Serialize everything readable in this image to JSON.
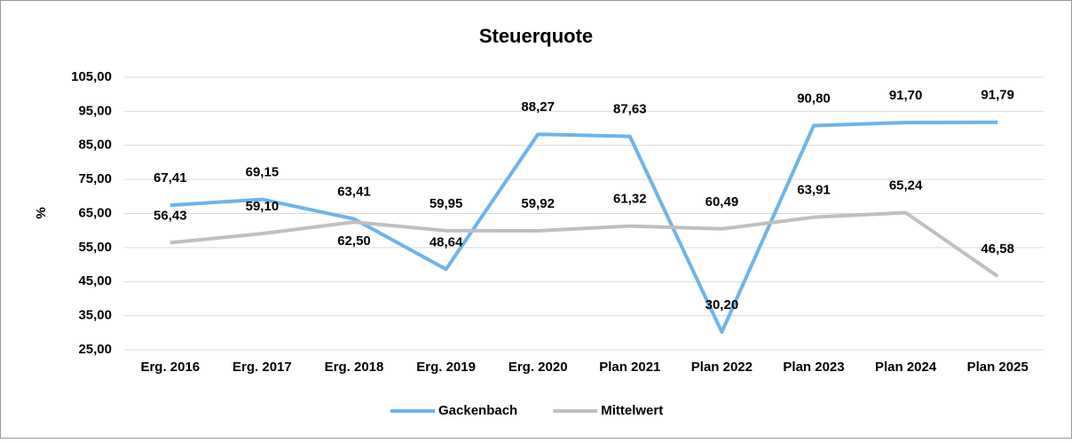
{
  "chart_data": {
    "type": "line",
    "title": "Steuerquote",
    "y_label": "%",
    "categories": [
      "Erg. 2016",
      "Erg. 2017",
      "Erg. 2018",
      "Erg. 2019",
      "Erg. 2020",
      "Plan 2021",
      "Plan 2022",
      "Plan 2023",
      "Plan 2024",
      "Plan 2025"
    ],
    "series": [
      {
        "name": "Gackenbach",
        "color": "#6cb4ee",
        "values": [
          67.41,
          69.15,
          63.41,
          48.64,
          88.27,
          87.63,
          30.2,
          90.8,
          91.7,
          91.79
        ],
        "value_labels": [
          "67,41",
          "69,15",
          "63,41",
          "48,64",
          "88,27",
          "87,63",
          "30,20",
          "90,80",
          "91,70",
          "91,79"
        ]
      },
      {
        "name": "Mittelwert",
        "color": "#bfbfbf",
        "values": [
          56.43,
          59.1,
          62.5,
          59.95,
          59.92,
          61.32,
          60.49,
          63.91,
          65.24,
          46.58
        ],
        "value_labels": [
          "56,43",
          "59,10",
          "62,50",
          "59,95",
          "59,92",
          "61,32",
          "60,49",
          "63,91",
          "65,24",
          "46,58"
        ]
      }
    ],
    "ylim": [
      25,
      105
    ],
    "yticks": [
      {
        "value": 25,
        "label": "25,00"
      },
      {
        "value": 35,
        "label": "35,00"
      },
      {
        "value": 45,
        "label": "45,00"
      },
      {
        "value": 55,
        "label": "55,00"
      },
      {
        "value": 65,
        "label": "65,00"
      },
      {
        "value": 75,
        "label": "75,00"
      },
      {
        "value": 85,
        "label": "85,00"
      },
      {
        "value": 95,
        "label": "95,00"
      },
      {
        "value": 105,
        "label": "105,00"
      }
    ],
    "grid": true,
    "legend": "bottom"
  }
}
